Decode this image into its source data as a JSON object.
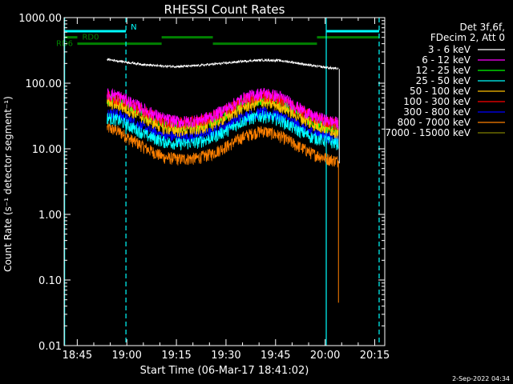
{
  "chart_data": {
    "type": "line",
    "title": "RHESSI Count Rates",
    "xlabel": "Start Time (06-Mar-17 18:41:02)",
    "ylabel": "Count Rate (s⁻¹ detector segment⁻¹)",
    "x_unit": "minutes after 18:41:02",
    "xlim": [
      0,
      97
    ],
    "ylim": [
      0.01,
      1000
    ],
    "y_scale": "log",
    "x_ticks": [
      {
        "x": 3.97,
        "label": "18:45"
      },
      {
        "x": 18.97,
        "label": "19:00"
      },
      {
        "x": 33.97,
        "label": "19:15"
      },
      {
        "x": 48.97,
        "label": "19:30"
      },
      {
        "x": 63.97,
        "label": "19:45"
      },
      {
        "x": 78.97,
        "label": "20:00"
      },
      {
        "x": 93.97,
        "label": "20:15"
      }
    ],
    "y_ticks": [
      {
        "y": 0.01,
        "label": "0.01"
      },
      {
        "y": 0.1,
        "label": "0.10"
      },
      {
        "y": 1,
        "label": "1.00"
      },
      {
        "y": 10,
        "label": "10.00"
      },
      {
        "y": 100,
        "label": "100.00"
      },
      {
        "y": 1000,
        "label": "1000.00"
      }
    ],
    "legend_header": [
      "Det 3f,6f,",
      "FDecim 2, Att 0"
    ],
    "legend_position": "right, outside plot",
    "series": [
      {
        "name": "3 - 6 keV",
        "color": "#ffffff",
        "x": [
          13,
          16,
          20,
          25,
          30,
          35,
          40,
          45,
          50,
          55,
          60,
          65,
          70,
          75,
          80,
          83
        ],
        "y": [
          230,
          220,
          205,
          190,
          182,
          180,
          185,
          195,
          205,
          218,
          225,
          222,
          205,
          185,
          172,
          165
        ]
      },
      {
        "name": "6 - 12 keV",
        "color": "#ff00ff",
        "x": [
          13,
          16,
          20,
          25,
          30,
          35,
          40,
          45,
          50,
          55,
          60,
          65,
          70,
          75,
          80,
          83
        ],
        "y": [
          70,
          66,
          52,
          38,
          29,
          26,
          27,
          32,
          44,
          62,
          72,
          64,
          45,
          32,
          27,
          25
        ]
      },
      {
        "name": "12 - 25 keV",
        "color": "#00ff00",
        "x": [
          13,
          16,
          20,
          25,
          30,
          35,
          40,
          45,
          50,
          55,
          60,
          65,
          70,
          75,
          80,
          83
        ],
        "y": [
          58,
          55,
          42,
          31,
          24,
          22,
          23,
          27,
          37,
          52,
          60,
          53,
          37,
          26,
          22,
          20
        ]
      },
      {
        "name": "25 - 50 keV",
        "color": "#00ffff",
        "x": [
          13,
          16,
          20,
          25,
          30,
          35,
          40,
          45,
          50,
          55,
          60,
          65,
          70,
          75,
          80,
          83
        ],
        "y": [
          30,
          28,
          22,
          16,
          13,
          12,
          12.5,
          15,
          20,
          28,
          32,
          28,
          20,
          15,
          13,
          12
        ]
      },
      {
        "name": "50 - 100 keV",
        "color": "#ffc000",
        "x": [
          13,
          16,
          20,
          25,
          30,
          35,
          40,
          45,
          50,
          55,
          60,
          65,
          70,
          75,
          80,
          83
        ],
        "y": [
          50,
          48,
          38,
          28,
          21,
          19,
          20,
          24,
          32,
          45,
          52,
          46,
          33,
          24,
          20,
          18
        ]
      },
      {
        "name": "100 - 300 keV",
        "color": "#ff0000",
        "x": [
          13,
          16,
          20,
          25,
          30,
          35,
          40,
          45,
          50,
          55,
          60,
          65,
          70,
          75,
          80,
          83
        ],
        "y": [
          62,
          60,
          48,
          36,
          27,
          25,
          26,
          31,
          42,
          58,
          66,
          59,
          42,
          31,
          26,
          24
        ]
      },
      {
        "name": "300 - 800 keV",
        "color": "#0000ff",
        "x": [
          13,
          16,
          20,
          25,
          30,
          35,
          40,
          45,
          50,
          55,
          60,
          65,
          70,
          75,
          80,
          83
        ],
        "y": [
          36,
          34,
          27,
          20,
          16,
          15,
          15.5,
          18,
          24,
          32,
          36,
          32,
          24,
          18,
          15,
          14
        ]
      },
      {
        "name": "800 - 7000 keV",
        "color": "#ff8000",
        "x": [
          13,
          16,
          20,
          25,
          30,
          35,
          40,
          45,
          50,
          55,
          60,
          65,
          70,
          75,
          80,
          83
        ],
        "y": [
          21,
          19,
          14,
          10,
          7.5,
          7,
          7.2,
          8.5,
          11.5,
          16,
          19,
          16,
          11.5,
          8.5,
          7,
          6.5
        ]
      },
      {
        "name": "7000 - 15000 keV",
        "color": "#808000",
        "x": [
          13,
          83
        ],
        "y": [
          null,
          null
        ]
      }
    ],
    "vlines_solid": {
      "color": "#00ffff",
      "x": [
        0.15,
        79.3
      ]
    },
    "vlines_dashed": {
      "color": "#00ffff",
      "x": [
        18.7,
        95.3
      ]
    },
    "flags": [
      {
        "label": "N",
        "color": "#00ffff",
        "y": 620,
        "spans": [
          [
            0,
            18.7
          ],
          [
            79.3,
            95.3
          ]
        ]
      },
      {
        "label": "RD0",
        "color": "#008000",
        "y": 500,
        "spans": [
          [
            0,
            4
          ],
          [
            29.5,
            45
          ],
          [
            76.5,
            95.3
          ]
        ]
      },
      {
        "label": "RD6",
        "color": "#008000",
        "y": 400,
        "spans": [
          [
            4,
            29.5
          ],
          [
            45,
            76.5
          ]
        ]
      }
    ]
  },
  "footer": {
    "date_stamp": "2-Sep-2022 04:34"
  }
}
